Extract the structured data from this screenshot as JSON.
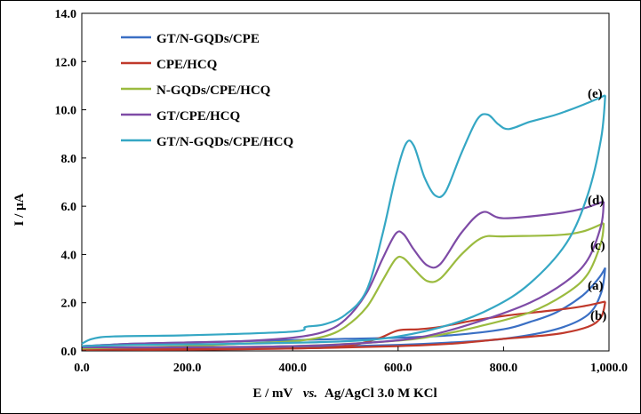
{
  "chart_data": {
    "type": "line",
    "title": "",
    "xlabel": "E / mV",
    "xlabel_italic": "vs.",
    "xlabel_rest": "Ag/AgCl 3.0 M KCl",
    "ylabel": "I / µA",
    "xlim": [
      0,
      1000
    ],
    "ylim": [
      0,
      14
    ],
    "x_ticks": [
      "0.0",
      "200.0",
      "400.0",
      "600.0",
      "800.0",
      "1,000.0"
    ],
    "x_tick_values": [
      0,
      200,
      400,
      600,
      800,
      1000
    ],
    "y_ticks": [
      "0.0",
      "2.0",
      "4.0",
      "6.0",
      "8.0",
      "10.0",
      "12.0",
      "14.0"
    ],
    "y_tick_values": [
      0,
      2,
      4,
      6,
      8,
      10,
      12,
      14
    ],
    "grid": false,
    "legend_position": "top-left",
    "series": [
      {
        "name": "GT/N-GQDs/CPE",
        "label": "(a)",
        "color": "#3A6FC4",
        "forward": [
          [
            0,
            0.2
          ],
          [
            100,
            0.3
          ],
          [
            200,
            0.35
          ],
          [
            300,
            0.4
          ],
          [
            400,
            0.45
          ],
          [
            500,
            0.5
          ],
          [
            600,
            0.55
          ],
          [
            700,
            0.65
          ],
          [
            800,
            0.9
          ],
          [
            850,
            1.2
          ],
          [
            900,
            1.6
          ],
          [
            950,
            2.3
          ],
          [
            980,
            3.0
          ],
          [
            993,
            3.45
          ]
        ],
        "reverse": [
          [
            993,
            3.45
          ],
          [
            985,
            2.4
          ],
          [
            960,
            1.5
          ],
          [
            900,
            0.9
          ],
          [
            800,
            0.5
          ],
          [
            700,
            0.35
          ],
          [
            600,
            0.25
          ],
          [
            400,
            0.15
          ],
          [
            200,
            0.1
          ],
          [
            0,
            0.1
          ]
        ]
      },
      {
        "name": "CPE/HCQ",
        "label": "(b)",
        "color": "#C0392B",
        "forward": [
          [
            0,
            0.05
          ],
          [
            200,
            0.08
          ],
          [
            400,
            0.1
          ],
          [
            500,
            0.2
          ],
          [
            560,
            0.5
          ],
          [
            600,
            0.85
          ],
          [
            640,
            0.9
          ],
          [
            680,
            1.0
          ],
          [
            740,
            1.25
          ],
          [
            800,
            1.45
          ],
          [
            900,
            1.7
          ],
          [
            950,
            1.85
          ],
          [
            993,
            2.05
          ]
        ],
        "reverse": [
          [
            993,
            2.05
          ],
          [
            985,
            1.4
          ],
          [
            960,
            1.0
          ],
          [
            900,
            0.7
          ],
          [
            800,
            0.5
          ],
          [
            700,
            0.3
          ],
          [
            600,
            0.2
          ],
          [
            400,
            0.1
          ],
          [
            200,
            0.05
          ],
          [
            0,
            0.05
          ]
        ]
      },
      {
        "name": "N-GQDs/CPE/HCQ",
        "label": "(c)",
        "color": "#9BBB3F",
        "forward": [
          [
            0,
            0.1
          ],
          [
            100,
            0.15
          ],
          [
            200,
            0.2
          ],
          [
            300,
            0.3
          ],
          [
            400,
            0.4
          ],
          [
            460,
            0.6
          ],
          [
            500,
            1.0
          ],
          [
            540,
            1.8
          ],
          [
            570,
            2.9
          ],
          [
            595,
            3.8
          ],
          [
            610,
            3.85
          ],
          [
            630,
            3.4
          ],
          [
            655,
            2.9
          ],
          [
            680,
            3.0
          ],
          [
            720,
            4.0
          ],
          [
            760,
            4.7
          ],
          [
            800,
            4.75
          ],
          [
            900,
            4.8
          ],
          [
            950,
            4.95
          ],
          [
            990,
            5.3
          ]
        ],
        "reverse": [
          [
            990,
            5.3
          ],
          [
            985,
            4.5
          ],
          [
            960,
            3.2
          ],
          [
            920,
            2.4
          ],
          [
            850,
            1.6
          ],
          [
            750,
            1.0
          ],
          [
            650,
            0.55
          ],
          [
            550,
            0.35
          ],
          [
            400,
            0.2
          ],
          [
            200,
            0.15
          ],
          [
            0,
            0.15
          ]
        ]
      },
      {
        "name": "GT/CPE/HCQ",
        "label": "(d)",
        "color": "#7E4BA6",
        "forward": [
          [
            0,
            0.2
          ],
          [
            100,
            0.3
          ],
          [
            200,
            0.35
          ],
          [
            300,
            0.4
          ],
          [
            400,
            0.55
          ],
          [
            460,
            0.8
          ],
          [
            500,
            1.3
          ],
          [
            540,
            2.4
          ],
          [
            570,
            3.8
          ],
          [
            595,
            4.85
          ],
          [
            610,
            4.85
          ],
          [
            630,
            4.2
          ],
          [
            655,
            3.55
          ],
          [
            680,
            3.6
          ],
          [
            720,
            4.9
          ],
          [
            760,
            5.75
          ],
          [
            800,
            5.5
          ],
          [
            900,
            5.7
          ],
          [
            950,
            5.9
          ],
          [
            990,
            6.2
          ]
        ],
        "reverse": [
          [
            990,
            6.2
          ],
          [
            985,
            5.2
          ],
          [
            960,
            3.8
          ],
          [
            920,
            2.9
          ],
          [
            850,
            2.0
          ],
          [
            750,
            1.2
          ],
          [
            650,
            0.6
          ],
          [
            550,
            0.35
          ],
          [
            400,
            0.2
          ],
          [
            200,
            0.15
          ],
          [
            0,
            0.15
          ]
        ]
      },
      {
        "name": "GT/N-GQDs/CPE/HCQ",
        "label": "(e)",
        "color": "#35A7C4",
        "forward": [
          [
            0,
            0.3
          ],
          [
            20,
            0.5
          ],
          [
            60,
            0.6
          ],
          [
            200,
            0.65
          ],
          [
            400,
            0.8
          ],
          [
            425,
            1.0
          ],
          [
            460,
            1.1
          ],
          [
            500,
            1.5
          ],
          [
            540,
            2.5
          ],
          [
            570,
            4.8
          ],
          [
            595,
            7.2
          ],
          [
            615,
            8.6
          ],
          [
            630,
            8.5
          ],
          [
            650,
            7.2
          ],
          [
            670,
            6.45
          ],
          [
            690,
            6.6
          ],
          [
            720,
            8.2
          ],
          [
            750,
            9.6
          ],
          [
            770,
            9.8
          ],
          [
            790,
            9.4
          ],
          [
            810,
            9.2
          ],
          [
            850,
            9.5
          ],
          [
            900,
            9.8
          ],
          [
            950,
            10.2
          ],
          [
            993,
            10.6
          ]
        ],
        "reverse": [
          [
            993,
            10.6
          ],
          [
            985,
            8.8
          ],
          [
            960,
            6.5
          ],
          [
            920,
            4.5
          ],
          [
            850,
            2.8
          ],
          [
            780,
            1.8
          ],
          [
            700,
            1.1
          ],
          [
            600,
            0.6
          ],
          [
            500,
            0.4
          ],
          [
            300,
            0.3
          ],
          [
            100,
            0.25
          ],
          [
            0,
            0.2
          ]
        ]
      }
    ]
  }
}
